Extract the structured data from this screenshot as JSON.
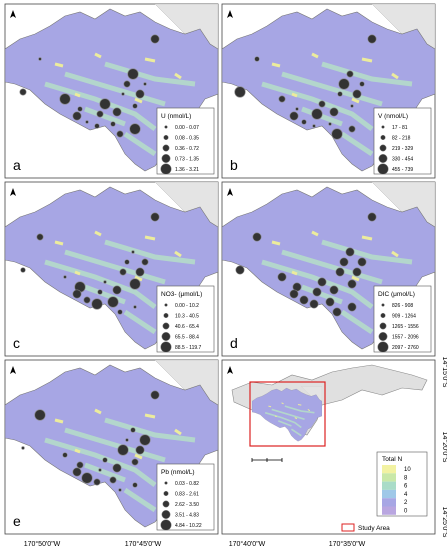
{
  "panels": [
    {
      "letter": "a",
      "legend_title": "U (nmol/L)",
      "classes": [
        "0.00 - 0.07",
        "0.08 - 0.35",
        "0.36 - 0.72",
        "0.73 - 1.35",
        "1.36 - 3.21"
      ]
    },
    {
      "letter": "b",
      "legend_title": "V (nmol/L)",
      "classes": [
        "17 - 81",
        "82 - 218",
        "219 - 329",
        "330 - 454",
        "455 - 739"
      ]
    },
    {
      "letter": "c",
      "legend_title": "NO3- (μmol/L)",
      "classes": [
        "0.00 - 10.2",
        "10.3 - 40.5",
        "40.6 - 65.4",
        "65.5 - 88.4",
        "88.5 - 119.7"
      ]
    },
    {
      "letter": "d",
      "legend_title": "DIC (μmol/L)",
      "classes": [
        "826 - 908",
        "909 - 1264",
        "1265 - 1556",
        "1557 - 2096",
        "2097 - 2760"
      ]
    },
    {
      "letter": "e",
      "legend_title": "Pb (nmol/L)",
      "classes": [
        "0.03 - 0.82",
        "0.83 - 2.61",
        "2.62 - 3.50",
        "3.51 - 4.83",
        "4.84 - 10.22"
      ]
    }
  ],
  "overview": {
    "legend_title": "Total N",
    "classes": [
      "10",
      "8",
      "6",
      "4",
      "2",
      "0"
    ],
    "study_area": "Study Area"
  },
  "longitudes": [
    "170°50'0\"W",
    "170°45'0\"W",
    "170°40'0\"W",
    "170°35'0\"W"
  ],
  "latitudes": [
    "14°15'0\"S",
    "14°20'0\"S",
    "14°25'0\"S"
  ]
}
